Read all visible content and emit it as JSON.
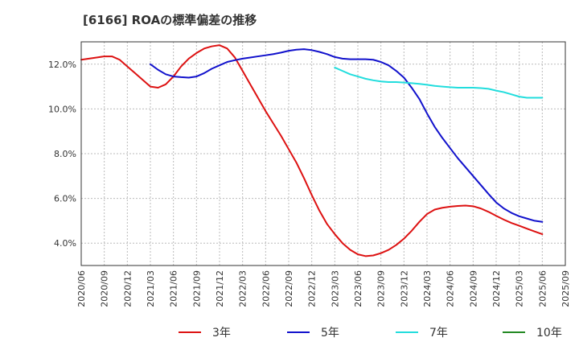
{
  "chart_data": {
    "type": "line",
    "title": "[6166]  ROAの標準偏差の推移",
    "xlabel": "",
    "ylabel": "",
    "ylim": [
      3.0,
      13.0
    ],
    "yticks": [
      4.0,
      6.0,
      8.0,
      10.0,
      12.0
    ],
    "ytick_labels": [
      "4.0%",
      "6.0%",
      "8.0%",
      "10.0%",
      "12.0%"
    ],
    "xlim": [
      "2020/06",
      "2025/09"
    ],
    "xtick_labels": [
      "2020/06",
      "2020/09",
      "2020/12",
      "2021/03",
      "2021/06",
      "2021/09",
      "2021/12",
      "2022/03",
      "2022/06",
      "2022/09",
      "2022/12",
      "2023/03",
      "2023/06",
      "2023/09",
      "2023/12",
      "2024/03",
      "2024/06",
      "2024/09",
      "2024/12",
      "2025/03",
      "2025/06",
      "2025/09"
    ],
    "grid": true,
    "legend_position": "bottom",
    "series": [
      {
        "name": "3年",
        "color": "#dd1111",
        "points": [
          [
            "2020/06",
            12.2
          ],
          [
            "2020/07",
            12.25
          ],
          [
            "2020/08",
            12.3
          ],
          [
            "2020/09",
            12.35
          ],
          [
            "2020/10",
            12.35
          ],
          [
            "2020/11",
            12.2
          ],
          [
            "2020/12",
            11.9
          ],
          [
            "2021/01",
            11.6
          ],
          [
            "2021/02",
            11.3
          ],
          [
            "2021/03",
            11.0
          ],
          [
            "2021/04",
            10.95
          ],
          [
            "2021/05",
            11.1
          ],
          [
            "2021/06",
            11.45
          ],
          [
            "2021/07",
            11.9
          ],
          [
            "2021/08",
            12.25
          ],
          [
            "2021/09",
            12.5
          ],
          [
            "2021/10",
            12.7
          ],
          [
            "2021/11",
            12.8
          ],
          [
            "2021/12",
            12.85
          ],
          [
            "2022/01",
            12.7
          ],
          [
            "2022/02",
            12.3
          ],
          [
            "2022/03",
            11.7
          ],
          [
            "2022/04",
            11.1
          ],
          [
            "2022/05",
            10.5
          ],
          [
            "2022/06",
            9.9
          ],
          [
            "2022/07",
            9.35
          ],
          [
            "2022/08",
            8.8
          ],
          [
            "2022/09",
            8.2
          ],
          [
            "2022/10",
            7.6
          ],
          [
            "2022/11",
            6.9
          ],
          [
            "2022/12",
            6.15
          ],
          [
            "2023/01",
            5.45
          ],
          [
            "2023/02",
            4.85
          ],
          [
            "2023/03",
            4.4
          ],
          [
            "2023/04",
            4.0
          ],
          [
            "2023/05",
            3.7
          ],
          [
            "2023/06",
            3.5
          ],
          [
            "2023/07",
            3.42
          ],
          [
            "2023/08",
            3.45
          ],
          [
            "2023/09",
            3.55
          ],
          [
            "2023/10",
            3.7
          ],
          [
            "2023/11",
            3.92
          ],
          [
            "2023/12",
            4.2
          ],
          [
            "2024/01",
            4.55
          ],
          [
            "2024/02",
            4.95
          ],
          [
            "2024/03",
            5.3
          ],
          [
            "2024/04",
            5.5
          ],
          [
            "2024/05",
            5.58
          ],
          [
            "2024/06",
            5.63
          ],
          [
            "2024/07",
            5.66
          ],
          [
            "2024/08",
            5.68
          ],
          [
            "2024/09",
            5.65
          ],
          [
            "2024/10",
            5.55
          ],
          [
            "2024/11",
            5.4
          ],
          [
            "2024/12",
            5.22
          ],
          [
            "2025/01",
            5.05
          ],
          [
            "2025/02",
            4.9
          ],
          [
            "2025/03",
            4.78
          ],
          [
            "2025/04",
            4.65
          ],
          [
            "2025/05",
            4.52
          ],
          [
            "2025/06",
            4.4
          ]
        ]
      },
      {
        "name": "5年",
        "color": "#1111cc",
        "points": [
          [
            "2021/03",
            12.0
          ],
          [
            "2021/04",
            11.75
          ],
          [
            "2021/05",
            11.55
          ],
          [
            "2021/06",
            11.45
          ],
          [
            "2021/07",
            11.42
          ],
          [
            "2021/08",
            11.4
          ],
          [
            "2021/09",
            11.45
          ],
          [
            "2021/10",
            11.6
          ],
          [
            "2021/11",
            11.8
          ],
          [
            "2021/12",
            11.95
          ],
          [
            "2022/01",
            12.1
          ],
          [
            "2022/02",
            12.18
          ],
          [
            "2022/03",
            12.25
          ],
          [
            "2022/04",
            12.3
          ],
          [
            "2022/05",
            12.35
          ],
          [
            "2022/06",
            12.4
          ],
          [
            "2022/07",
            12.45
          ],
          [
            "2022/08",
            12.52
          ],
          [
            "2022/09",
            12.6
          ],
          [
            "2022/10",
            12.65
          ],
          [
            "2022/11",
            12.67
          ],
          [
            "2022/12",
            12.63
          ],
          [
            "2023/01",
            12.55
          ],
          [
            "2023/02",
            12.45
          ],
          [
            "2023/03",
            12.32
          ],
          [
            "2023/04",
            12.25
          ],
          [
            "2023/05",
            12.22
          ],
          [
            "2023/06",
            12.22
          ],
          [
            "2023/07",
            12.22
          ],
          [
            "2023/08",
            12.2
          ],
          [
            "2023/09",
            12.1
          ],
          [
            "2023/10",
            11.95
          ],
          [
            "2023/11",
            11.7
          ],
          [
            "2023/12",
            11.4
          ],
          [
            "2024/01",
            10.95
          ],
          [
            "2024/02",
            10.45
          ],
          [
            "2024/03",
            9.8
          ],
          [
            "2024/04",
            9.2
          ],
          [
            "2024/05",
            8.7
          ],
          [
            "2024/06",
            8.25
          ],
          [
            "2024/07",
            7.8
          ],
          [
            "2024/08",
            7.4
          ],
          [
            "2024/09",
            7.0
          ],
          [
            "2024/10",
            6.6
          ],
          [
            "2024/11",
            6.2
          ],
          [
            "2024/12",
            5.82
          ],
          [
            "2025/01",
            5.55
          ],
          [
            "2025/02",
            5.35
          ],
          [
            "2025/03",
            5.2
          ],
          [
            "2025/04",
            5.1
          ],
          [
            "2025/05",
            5.0
          ],
          [
            "2025/06",
            4.95
          ]
        ]
      },
      {
        "name": "7年",
        "color": "#22dddd",
        "points": [
          [
            "2023/03",
            11.85
          ],
          [
            "2023/04",
            11.7
          ],
          [
            "2023/05",
            11.55
          ],
          [
            "2023/06",
            11.45
          ],
          [
            "2023/07",
            11.35
          ],
          [
            "2023/08",
            11.28
          ],
          [
            "2023/09",
            11.23
          ],
          [
            "2023/10",
            11.2
          ],
          [
            "2023/11",
            11.2
          ],
          [
            "2023/12",
            11.18
          ],
          [
            "2024/01",
            11.15
          ],
          [
            "2024/02",
            11.12
          ],
          [
            "2024/03",
            11.08
          ],
          [
            "2024/04",
            11.03
          ],
          [
            "2024/05",
            11.0
          ],
          [
            "2024/06",
            10.97
          ],
          [
            "2024/07",
            10.95
          ],
          [
            "2024/08",
            10.95
          ],
          [
            "2024/09",
            10.95
          ],
          [
            "2024/10",
            10.93
          ],
          [
            "2024/11",
            10.9
          ],
          [
            "2024/12",
            10.82
          ],
          [
            "2025/01",
            10.75
          ],
          [
            "2025/02",
            10.65
          ],
          [
            "2025/03",
            10.55
          ],
          [
            "2025/04",
            10.5
          ],
          [
            "2025/05",
            10.5
          ],
          [
            "2025/06",
            10.5
          ]
        ]
      },
      {
        "name": "10年",
        "color": "#228822",
        "points": []
      }
    ]
  }
}
